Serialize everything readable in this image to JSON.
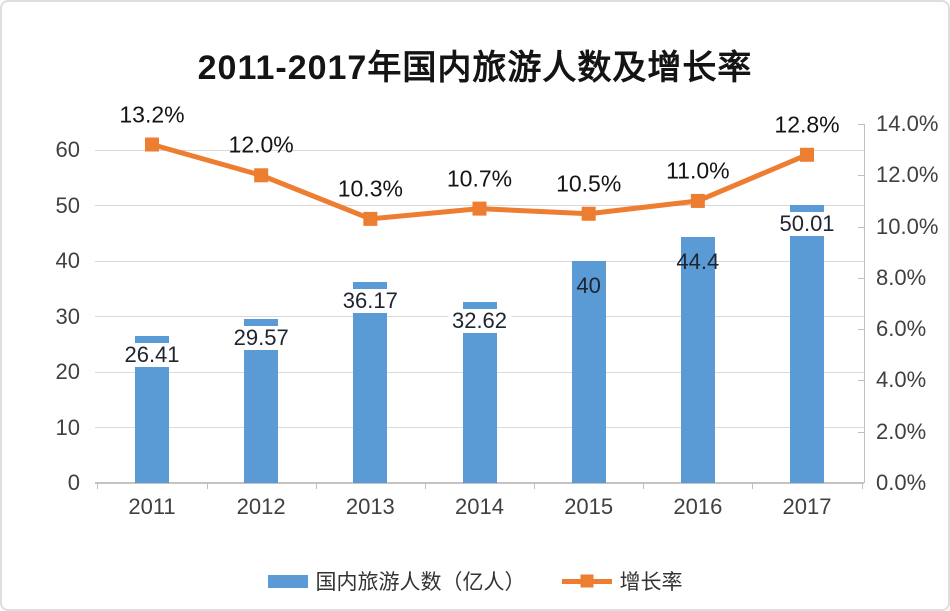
{
  "title": "2011-2017年国内旅游人数及增长率",
  "legend": {
    "bars": "国内旅游人数（亿人）",
    "line": "增长率"
  },
  "colors": {
    "bar": "#5B9BD5",
    "line": "#ED7D31",
    "gridline": "#d9d9d9",
    "axis": "#bfbfbf",
    "tick_text": "#404040",
    "label_text": "#141414"
  },
  "chart_data": {
    "type": "bar",
    "subtype": "combo-bar-line-dual-axis",
    "title": "2011-2017年国内旅游人数及增长率",
    "categories": [
      "2011",
      "2012",
      "2013",
      "2014",
      "2015",
      "2016",
      "2017"
    ],
    "series": [
      {
        "name": "国内旅游人数（亿人）",
        "type": "bar",
        "axis": "left",
        "values": [
          26.41,
          29.57,
          36.17,
          32.62,
          40,
          44.4,
          50.01
        ],
        "labels": [
          "26.41",
          "29.57",
          "36.17",
          "32.62",
          "40",
          "44.4",
          "50.01"
        ],
        "label_white_box": [
          true,
          true,
          true,
          true,
          false,
          false,
          true
        ]
      },
      {
        "name": "增长率",
        "type": "line",
        "axis": "right",
        "values": [
          13.2,
          12.0,
          10.3,
          10.7,
          10.5,
          11.0,
          12.8
        ],
        "labels": [
          "13.2%",
          "12.0%",
          "10.3%",
          "10.7%",
          "10.5%",
          "11.0%",
          "12.8%"
        ]
      }
    ],
    "left_axis": {
      "min": 0,
      "max": 60,
      "step": 10,
      "ticks": [
        "0",
        "10",
        "20",
        "30",
        "40",
        "50",
        "60"
      ]
    },
    "right_axis": {
      "min": 0,
      "max": 14,
      "step": 2,
      "ticks": [
        "0.0%",
        "2.0%",
        "4.0%",
        "6.0%",
        "8.0%",
        "10.0%",
        "12.0%",
        "14.0%"
      ]
    },
    "grid": true,
    "legend_position": "bottom",
    "xlabel": "",
    "ylabel": ""
  }
}
